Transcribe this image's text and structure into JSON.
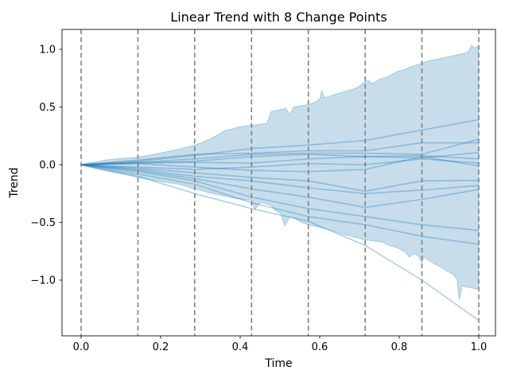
{
  "chart_data": {
    "type": "line",
    "title": "Linear Trend with 8 Change Points",
    "xlabel": "Time",
    "ylabel": "Trend",
    "xlim": [
      -0.048,
      1.042
    ],
    "ylim": [
      -1.483,
      1.172
    ],
    "grid": false,
    "legend": "none",
    "xticks": {
      "values": [
        0.0,
        0.2,
        0.4,
        0.6,
        0.8,
        1.0
      ],
      "labels": [
        "0.0",
        "0.2",
        "0.4",
        "0.6",
        "0.8",
        "1.0"
      ]
    },
    "yticks": {
      "values": [
        1.0,
        0.5,
        0.0,
        -0.5,
        -1.0
      ],
      "labels": [
        "1.0",
        "0.5",
        "0.0",
        "−0.5",
        "−1.0"
      ]
    },
    "changepoints": [
      0.0,
      0.1429,
      0.2857,
      0.4286,
      0.5714,
      0.7143,
      0.8571,
      1.0
    ],
    "knots_t": [
      0.0,
      0.1429,
      0.2857,
      0.4286,
      0.5714,
      0.7143,
      0.8571,
      1.0
    ],
    "trend_samples": [
      [
        0,
        0.03,
        0.08,
        0.14,
        0.17,
        0.21,
        0.3,
        0.39
      ],
      [
        0,
        0.02,
        0.05,
        0.09,
        0.1,
        0.1,
        0.09,
        0.22
      ],
      [
        0,
        0.04,
        0.09,
        0.1,
        0.12,
        0.12,
        0.19,
        0.19
      ],
      [
        0,
        0.01,
        0.03,
        0.07,
        0.09,
        0.07,
        0.06,
        0.105
      ],
      [
        0,
        0.02,
        0.02,
        0.014,
        0.05,
        0.07,
        0.08,
        0.05
      ],
      [
        0,
        -0.02,
        -0.04,
        -0.02,
        0.01,
        0.0,
        0.05,
        0.014
      ],
      [
        0,
        0.01,
        -0.02,
        -0.05,
        -0.06,
        -0.04,
        0.07,
        -0.01
      ],
      [
        0,
        -0.03,
        -0.07,
        -0.11,
        -0.14,
        -0.23,
        -0.14,
        -0.136
      ],
      [
        0,
        -0.04,
        -0.1,
        -0.14,
        -0.2,
        -0.25,
        -0.22,
        -0.18
      ],
      [
        0,
        -0.05,
        -0.12,
        -0.21,
        -0.28,
        -0.37,
        -0.3,
        -0.215
      ],
      [
        0,
        -0.06,
        -0.14,
        -0.28,
        -0.38,
        -0.45,
        -0.52,
        -0.57
      ],
      [
        0,
        -0.08,
        -0.17,
        -0.33,
        -0.45,
        -0.52,
        -0.62,
        -0.69
      ],
      [
        0,
        -0.1,
        -0.25,
        -0.38,
        -0.49,
        -0.7,
        -1.0,
        -1.35
      ]
    ],
    "uncertainty_band": {
      "upper": [
        [
          0,
          0
        ],
        [
          0.02,
          0.015
        ],
        [
          0.04,
          0.025
        ],
        [
          0.06,
          0.04
        ],
        [
          0.08,
          0.048
        ],
        [
          0.1,
          0.053
        ],
        [
          0.12,
          0.058
        ],
        [
          0.143,
          0.065
        ],
        [
          0.165,
          0.078
        ],
        [
          0.19,
          0.095
        ],
        [
          0.215,
          0.112
        ],
        [
          0.24,
          0.13
        ],
        [
          0.263,
          0.15
        ],
        [
          0.286,
          0.17
        ],
        [
          0.305,
          0.195
        ],
        [
          0.325,
          0.225
        ],
        [
          0.345,
          0.26
        ],
        [
          0.36,
          0.295
        ],
        [
          0.38,
          0.31
        ],
        [
          0.4,
          0.33
        ],
        [
          0.425,
          0.34
        ],
        [
          0.45,
          0.35
        ],
        [
          0.468,
          0.36
        ],
        [
          0.478,
          0.46
        ],
        [
          0.49,
          0.47
        ],
        [
          0.505,
          0.48
        ],
        [
          0.515,
          0.49
        ],
        [
          0.524,
          0.43
        ],
        [
          0.535,
          0.5
        ],
        [
          0.553,
          0.51
        ],
        [
          0.571,
          0.52
        ],
        [
          0.59,
          0.545
        ],
        [
          0.6,
          0.57
        ],
        [
          0.605,
          0.64
        ],
        [
          0.612,
          0.58
        ],
        [
          0.625,
          0.595
        ],
        [
          0.64,
          0.61
        ],
        [
          0.655,
          0.625
        ],
        [
          0.67,
          0.64
        ],
        [
          0.685,
          0.655
        ],
        [
          0.7,
          0.68
        ],
        [
          0.714,
          0.72
        ],
        [
          0.722,
          0.73
        ],
        [
          0.732,
          0.7
        ],
        [
          0.75,
          0.74
        ],
        [
          0.77,
          0.76
        ],
        [
          0.796,
          0.81
        ],
        [
          0.81,
          0.82
        ],
        [
          0.826,
          0.845
        ],
        [
          0.84,
          0.86
        ],
        [
          0.857,
          0.88
        ],
        [
          0.875,
          0.9
        ],
        [
          0.89,
          0.91
        ],
        [
          0.91,
          0.925
        ],
        [
          0.93,
          0.94
        ],
        [
          0.95,
          0.955
        ],
        [
          0.965,
          0.97
        ],
        [
          0.975,
          0.98
        ],
        [
          0.982,
          1.04
        ],
        [
          0.988,
          1.01
        ],
        [
          1.0,
          1.03
        ]
      ],
      "lower": [
        [
          0,
          0
        ],
        [
          0.02,
          -0.02
        ],
        [
          0.05,
          -0.045
        ],
        [
          0.08,
          -0.065
        ],
        [
          0.11,
          -0.085
        ],
        [
          0.143,
          -0.11
        ],
        [
          0.165,
          -0.123
        ],
        [
          0.19,
          -0.14
        ],
        [
          0.215,
          -0.155
        ],
        [
          0.24,
          -0.165
        ],
        [
          0.263,
          -0.185
        ],
        [
          0.286,
          -0.21
        ],
        [
          0.305,
          -0.225
        ],
        [
          0.325,
          -0.245
        ],
        [
          0.345,
          -0.26
        ],
        [
          0.365,
          -0.275
        ],
        [
          0.385,
          -0.29
        ],
        [
          0.405,
          -0.3
        ],
        [
          0.418,
          -0.305
        ],
        [
          0.429,
          -0.31
        ],
        [
          0.437,
          -0.39
        ],
        [
          0.447,
          -0.34
        ],
        [
          0.456,
          -0.33
        ],
        [
          0.476,
          -0.35
        ],
        [
          0.49,
          -0.4
        ],
        [
          0.502,
          -0.42
        ],
        [
          0.512,
          -0.53
        ],
        [
          0.525,
          -0.45
        ],
        [
          0.54,
          -0.47
        ],
        [
          0.555,
          -0.5
        ],
        [
          0.571,
          -0.52
        ],
        [
          0.596,
          -0.54
        ],
        [
          0.626,
          -0.565
        ],
        [
          0.656,
          -0.6
        ],
        [
          0.686,
          -0.625
        ],
        [
          0.714,
          -0.65
        ],
        [
          0.736,
          -0.66
        ],
        [
          0.756,
          -0.67
        ],
        [
          0.776,
          -0.7
        ],
        [
          0.796,
          -0.72
        ],
        [
          0.816,
          -0.76
        ],
        [
          0.826,
          -0.8
        ],
        [
          0.836,
          -0.77
        ],
        [
          0.848,
          -0.79
        ],
        [
          0.857,
          -0.85
        ],
        [
          0.862,
          -0.8
        ],
        [
          0.875,
          -0.83
        ],
        [
          0.89,
          -0.86
        ],
        [
          0.905,
          -0.89
        ],
        [
          0.92,
          -0.92
        ],
        [
          0.935,
          -0.95
        ],
        [
          0.945,
          -0.99
        ],
        [
          0.951,
          -1.17
        ],
        [
          0.958,
          -1.05
        ],
        [
          0.97,
          -1.06
        ],
        [
          0.985,
          -1.07
        ],
        [
          1.0,
          -1.08
        ]
      ]
    },
    "colors": {
      "line": "#1f77b4",
      "line_alpha": 0.35,
      "band_fill": "#1f77b4",
      "band_alpha": 0.25,
      "band_edge_alpha": 0.3,
      "changepoint": "#808080",
      "spine": "#262626",
      "text": "#000000"
    }
  }
}
